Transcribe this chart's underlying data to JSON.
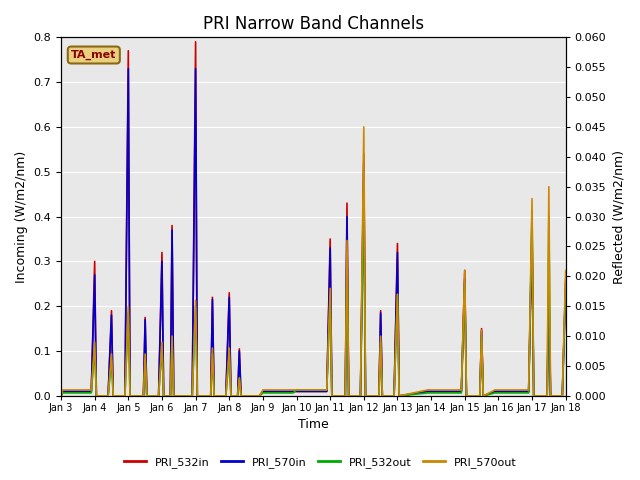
{
  "title": "PRI Narrow Band Channels",
  "xlabel": "Time",
  "ylabel_left": "Incoming (W/m2/nm)",
  "ylabel_right": "Reflected (W/m2/nm)",
  "ylim_left": [
    0.0,
    0.8
  ],
  "ylim_right": [
    0.0,
    0.06
  ],
  "plot_bg_color": "#e8e8e8",
  "station_label": "TA_met",
  "station_label_color": "#8B0000",
  "station_label_bg": "#e8d080",
  "station_label_edge": "#8B6914",
  "legend_entries": [
    "PRI_532in",
    "PRI_570in",
    "PRI_532out",
    "PRI_570out"
  ],
  "line_colors": [
    "#cc0000",
    "#0000cc",
    "#00aa00",
    "#cc8800"
  ],
  "xlim": [
    3,
    18
  ],
  "tick_positions_days": [
    3,
    4,
    5,
    6,
    7,
    8,
    9,
    10,
    11,
    12,
    13,
    14,
    15,
    16,
    17,
    18
  ],
  "tick_labels": [
    "Jan 3",
    "Jan 4",
    "Jan 5",
    "Jan 6",
    "Jan 7",
    "Jan 8",
    "Jan 9",
    "Jan 10",
    "Jan 11",
    "Jan 12",
    "Jan 13",
    "Jan 14",
    "Jan 15",
    "Jan 16",
    "Jan 17",
    "Jan 18"
  ],
  "series": {
    "PRI_532in": {
      "x": [
        3.0,
        3.05,
        3.9,
        4.0,
        4.05,
        4.4,
        4.5,
        4.55,
        4.9,
        5.0,
        5.05,
        5.45,
        5.5,
        5.55,
        5.9,
        6.0,
        6.05,
        6.25,
        6.3,
        6.35,
        6.9,
        7.0,
        7.05,
        7.45,
        7.5,
        7.55,
        7.9,
        8.0,
        8.05,
        8.25,
        8.3,
        8.35,
        8.9,
        9.0,
        9.9,
        10.0,
        10.9,
        11.0,
        11.05,
        11.45,
        11.5,
        11.55,
        11.9,
        12.0,
        12.05,
        12.45,
        12.5,
        12.55,
        12.9,
        13.0,
        13.05,
        13.9,
        14.0,
        14.9,
        15.0,
        15.05,
        15.45,
        15.5,
        15.55,
        15.9,
        16.0,
        16.9,
        17.0,
        17.05,
        17.45,
        17.5,
        17.55,
        17.9,
        18.0
      ],
      "y": [
        0.0,
        0.01,
        0.01,
        0.3,
        0.0,
        0.0,
        0.19,
        0.0,
        0.0,
        0.77,
        0.0,
        0.0,
        0.175,
        0.0,
        0.0,
        0.32,
        0.0,
        0.0,
        0.38,
        0.0,
        0.0,
        0.79,
        0.0,
        0.0,
        0.22,
        0.0,
        0.0,
        0.23,
        0.0,
        0.0,
        0.105,
        0.0,
        0.0,
        0.01,
        0.01,
        0.01,
        0.01,
        0.35,
        0.0,
        0.0,
        0.43,
        0.0,
        0.0,
        0.54,
        0.0,
        0.0,
        0.19,
        0.0,
        0.0,
        0.34,
        0.0,
        0.01,
        0.01,
        0.01,
        0.28,
        0.0,
        0.0,
        0.15,
        0.0,
        0.01,
        0.01,
        0.01,
        0.39,
        0.0,
        0.0,
        0.25,
        0.0,
        0.0,
        0.26
      ]
    },
    "PRI_570in": {
      "x": [
        3.0,
        3.05,
        3.9,
        4.0,
        4.05,
        4.4,
        4.5,
        4.55,
        4.9,
        5.0,
        5.05,
        5.45,
        5.5,
        5.55,
        5.9,
        6.0,
        6.05,
        6.25,
        6.3,
        6.35,
        6.9,
        7.0,
        7.05,
        7.45,
        7.5,
        7.55,
        7.9,
        8.0,
        8.05,
        8.25,
        8.3,
        8.35,
        8.9,
        9.0,
        9.9,
        10.0,
        10.9,
        11.0,
        11.05,
        11.45,
        11.5,
        11.55,
        11.9,
        12.0,
        12.05,
        12.45,
        12.5,
        12.55,
        12.9,
        13.0,
        13.05,
        13.9,
        14.0,
        14.9,
        15.0,
        15.05,
        15.45,
        15.5,
        15.55,
        15.9,
        16.0,
        16.9,
        17.0,
        17.05,
        17.45,
        17.5,
        17.55,
        17.9,
        18.0
      ],
      "y": [
        0.0,
        0.01,
        0.01,
        0.27,
        0.0,
        0.0,
        0.18,
        0.0,
        0.0,
        0.73,
        0.0,
        0.0,
        0.17,
        0.0,
        0.0,
        0.3,
        0.0,
        0.0,
        0.37,
        0.0,
        0.0,
        0.73,
        0.0,
        0.0,
        0.215,
        0.0,
        0.0,
        0.22,
        0.0,
        0.0,
        0.1,
        0.0,
        0.0,
        0.01,
        0.01,
        0.01,
        0.01,
        0.33,
        0.0,
        0.0,
        0.4,
        0.0,
        0.0,
        0.52,
        0.0,
        0.0,
        0.185,
        0.0,
        0.0,
        0.32,
        0.0,
        0.01,
        0.01,
        0.01,
        0.26,
        0.0,
        0.0,
        0.145,
        0.0,
        0.01,
        0.01,
        0.01,
        0.36,
        0.0,
        0.0,
        0.24,
        0.0,
        0.0,
        0.24
      ]
    },
    "PRI_532out": {
      "x": [
        3.0,
        3.05,
        3.9,
        4.0,
        4.05,
        4.4,
        4.5,
        4.55,
        4.9,
        5.0,
        5.05,
        5.45,
        5.5,
        5.55,
        5.9,
        6.0,
        6.05,
        6.25,
        6.3,
        6.35,
        6.9,
        7.0,
        7.05,
        7.45,
        7.5,
        7.55,
        7.9,
        8.0,
        8.05,
        8.25,
        8.3,
        8.35,
        8.9,
        9.0,
        9.9,
        10.0,
        10.9,
        11.0,
        11.05,
        11.45,
        11.5,
        11.55,
        11.9,
        12.0,
        12.05,
        12.45,
        12.5,
        12.55,
        12.9,
        13.0,
        13.05,
        13.9,
        14.0,
        14.9,
        15.0,
        15.05,
        15.45,
        15.5,
        15.55,
        15.9,
        16.0,
        16.9,
        17.0,
        17.05,
        17.45,
        17.5,
        17.55,
        17.9,
        18.0
      ],
      "y": [
        0.0,
        0.0005,
        0.0005,
        0.008,
        0.0,
        0.0,
        0.006,
        0.0,
        0.0,
        0.014,
        0.0,
        0.0,
        0.006,
        0.0,
        0.0,
        0.008,
        0.0,
        0.0,
        0.009,
        0.0,
        0.0,
        0.015,
        0.0,
        0.0,
        0.007,
        0.0,
        0.0,
        0.007,
        0.0,
        0.0,
        0.003,
        0.0,
        0.0,
        0.0005,
        0.0005,
        0.001,
        0.001,
        0.017,
        0.0,
        0.0,
        0.024,
        0.0,
        0.0,
        0.033,
        0.0,
        0.0,
        0.009,
        0.0,
        0.0,
        0.017,
        0.0,
        0.0005,
        0.0005,
        0.0005,
        0.019,
        0.0,
        0.0,
        0.01,
        0.0,
        0.0005,
        0.0005,
        0.0005,
        0.031,
        0.0,
        0.0,
        0.03,
        0.0,
        0.0,
        0.019
      ]
    },
    "PRI_570out": {
      "x": [
        3.0,
        3.05,
        3.9,
        4.0,
        4.05,
        4.4,
        4.5,
        4.55,
        4.9,
        5.0,
        5.05,
        5.45,
        5.5,
        5.55,
        5.9,
        6.0,
        6.05,
        6.25,
        6.3,
        6.35,
        6.9,
        7.0,
        7.05,
        7.45,
        7.5,
        7.55,
        7.9,
        8.0,
        8.05,
        8.25,
        8.3,
        8.35,
        8.9,
        9.0,
        9.9,
        10.0,
        10.9,
        11.0,
        11.05,
        11.45,
        11.5,
        11.55,
        11.9,
        12.0,
        12.05,
        12.45,
        12.5,
        12.55,
        12.9,
        13.0,
        13.05,
        13.9,
        14.0,
        14.9,
        15.0,
        15.05,
        15.45,
        15.5,
        15.55,
        15.9,
        16.0,
        16.9,
        17.0,
        17.05,
        17.45,
        17.5,
        17.55,
        17.9,
        18.0
      ],
      "y": [
        0.0,
        0.001,
        0.001,
        0.009,
        0.0,
        0.0,
        0.007,
        0.0,
        0.0,
        0.015,
        0.0,
        0.0,
        0.007,
        0.0,
        0.0,
        0.009,
        0.0,
        0.0,
        0.01,
        0.0,
        0.0,
        0.016,
        0.0,
        0.0,
        0.008,
        0.0,
        0.0,
        0.008,
        0.0,
        0.0,
        0.003,
        0.0,
        0.0,
        0.001,
        0.001,
        0.001,
        0.001,
        0.018,
        0.0,
        0.0,
        0.026,
        0.0,
        0.0,
        0.045,
        0.0,
        0.0,
        0.01,
        0.0,
        0.0,
        0.017,
        0.0,
        0.001,
        0.001,
        0.001,
        0.021,
        0.0,
        0.0,
        0.011,
        0.0,
        0.001,
        0.001,
        0.001,
        0.033,
        0.0,
        0.0,
        0.035,
        0.0,
        0.0,
        0.021
      ]
    }
  }
}
